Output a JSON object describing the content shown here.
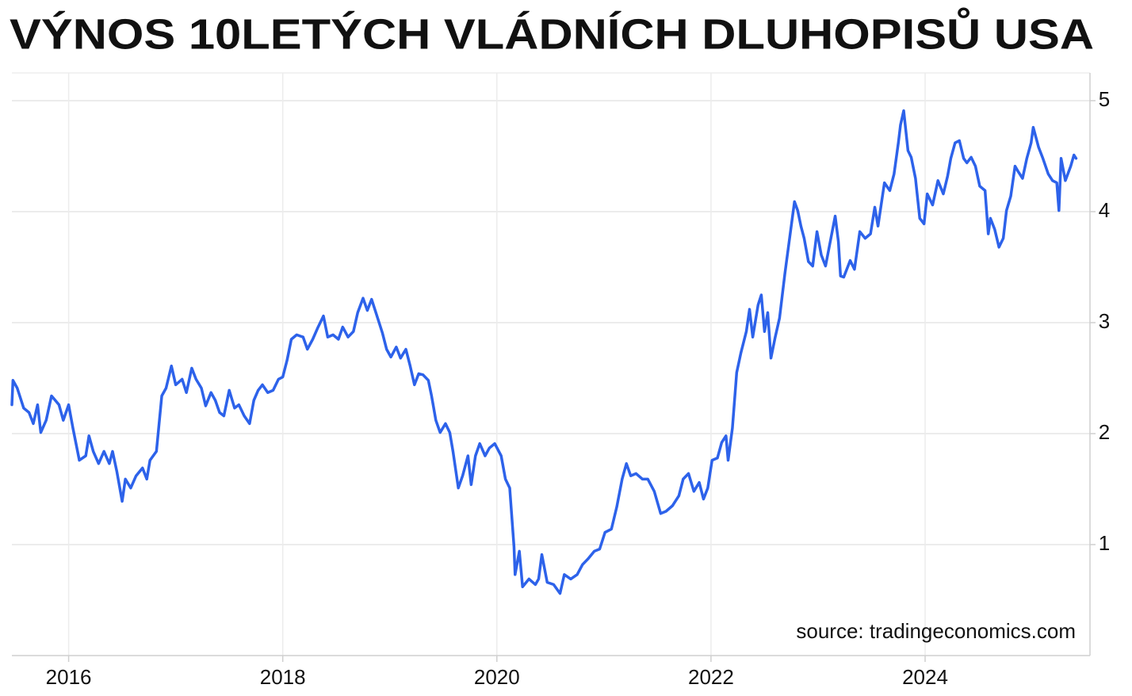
{
  "chart_data": {
    "type": "line",
    "title": "VÝNOS 10LETÝCH VLÁDNÍCH DLUHOPISŮ USA",
    "annotation": "source: tradingeconomics.com",
    "color": "#2d62ea",
    "grid": true,
    "xlim": [
      2015.47,
      2025.54
    ],
    "xticks": [
      2016,
      2018,
      2020,
      2022,
      2024
    ],
    "ylim": [
      0,
      5.25
    ],
    "yticks": [
      1,
      2,
      3,
      4,
      5
    ],
    "x": [
      2015.47,
      2015.48,
      2015.52,
      2015.58,
      2015.63,
      2015.67,
      2015.71,
      2015.74,
      2015.79,
      2015.84,
      2015.91,
      2015.95,
      2016.0,
      2016.04,
      2016.1,
      2016.16,
      2016.19,
      2016.23,
      2016.28,
      2016.33,
      2016.38,
      2016.41,
      2016.45,
      2016.5,
      2016.53,
      2016.58,
      2016.63,
      2016.69,
      2016.73,
      2016.76,
      2016.82,
      2016.87,
      2016.91,
      2016.96,
      2017.0,
      2017.06,
      2017.1,
      2017.15,
      2017.19,
      2017.24,
      2017.28,
      2017.33,
      2017.37,
      2017.41,
      2017.45,
      2017.5,
      2017.55,
      2017.59,
      2017.64,
      2017.69,
      2017.73,
      2017.77,
      2017.81,
      2017.86,
      2017.91,
      2017.96,
      2018.0,
      2018.04,
      2018.08,
      2018.13,
      2018.19,
      2018.23,
      2018.28,
      2018.33,
      2018.38,
      2018.42,
      2018.47,
      2018.52,
      2018.56,
      2018.61,
      2018.66,
      2018.7,
      2018.75,
      2018.79,
      2018.83,
      2018.87,
      2018.93,
      2018.97,
      2019.01,
      2019.06,
      2019.1,
      2019.15,
      2019.19,
      2019.23,
      2019.27,
      2019.31,
      2019.36,
      2019.39,
      2019.43,
      2019.47,
      2019.52,
      2019.56,
      2019.59,
      2019.64,
      2019.68,
      2019.73,
      2019.76,
      2019.8,
      2019.84,
      2019.89,
      2019.93,
      2019.98,
      2020.04,
      2020.08,
      2020.12,
      2020.16,
      2020.17,
      2020.21,
      2020.24,
      2020.3,
      2020.36,
      2020.39,
      2020.42,
      2020.47,
      2020.53,
      2020.59,
      2020.63,
      2020.69,
      2020.75,
      2020.8,
      2020.85,
      2020.91,
      2020.96,
      2021.01,
      2021.07,
      2021.12,
      2021.17,
      2021.21,
      2021.25,
      2021.3,
      2021.36,
      2021.41,
      2021.47,
      2021.53,
      2021.58,
      2021.64,
      2021.7,
      2021.74,
      2021.79,
      2021.84,
      2021.89,
      2021.93,
      2021.97,
      2022.01,
      2022.06,
      2022.1,
      2022.14,
      2022.16,
      2022.2,
      2022.24,
      2022.28,
      2022.33,
      2022.36,
      2022.39,
      2022.44,
      2022.47,
      2022.5,
      2022.53,
      2022.56,
      2022.6,
      2022.64,
      2022.69,
      2022.73,
      2022.78,
      2022.81,
      2022.84,
      2022.87,
      2022.91,
      2022.95,
      2022.99,
      2023.03,
      2023.07,
      2023.12,
      2023.16,
      2023.19,
      2023.21,
      2023.24,
      2023.3,
      2023.34,
      2023.39,
      2023.44,
      2023.49,
      2023.53,
      2023.56,
      2023.62,
      2023.67,
      2023.71,
      2023.75,
      2023.77,
      2023.8,
      2023.84,
      2023.87,
      2023.91,
      2023.95,
      2023.99,
      2024.02,
      2024.07,
      2024.12,
      2024.17,
      2024.21,
      2024.24,
      2024.28,
      2024.32,
      2024.36,
      2024.39,
      2024.43,
      2024.47,
      2024.51,
      2024.56,
      2024.59,
      2024.61,
      2024.65,
      2024.69,
      2024.73,
      2024.76,
      2024.8,
      2024.84,
      2024.87,
      2024.91,
      2024.95,
      2024.99,
      2025.01,
      2025.06,
      2025.1,
      2025.15,
      2025.19,
      2025.23,
      2025.25,
      2025.27,
      2025.31,
      2025.36,
      2025.39,
      2025.41
    ],
    "values": [
      2.26,
      2.48,
      2.41,
      2.23,
      2.19,
      2.09,
      2.26,
      2.01,
      2.12,
      2.34,
      2.26,
      2.12,
      2.26,
      2.05,
      1.76,
      1.8,
      1.98,
      1.84,
      1.73,
      1.84,
      1.73,
      1.84,
      1.66,
      1.39,
      1.59,
      1.51,
      1.62,
      1.69,
      1.59,
      1.76,
      1.84,
      2.34,
      2.41,
      2.61,
      2.44,
      2.49,
      2.37,
      2.59,
      2.49,
      2.41,
      2.25,
      2.37,
      2.3,
      2.19,
      2.16,
      2.39,
      2.23,
      2.26,
      2.16,
      2.09,
      2.3,
      2.39,
      2.44,
      2.37,
      2.39,
      2.49,
      2.51,
      2.66,
      2.85,
      2.89,
      2.87,
      2.76,
      2.85,
      2.96,
      3.06,
      2.87,
      2.89,
      2.85,
      2.96,
      2.87,
      2.92,
      3.09,
      3.22,
      3.11,
      3.21,
      3.09,
      2.91,
      2.76,
      2.69,
      2.78,
      2.68,
      2.76,
      2.61,
      2.44,
      2.54,
      2.53,
      2.48,
      2.34,
      2.12,
      2.01,
      2.09,
      2.01,
      1.84,
      1.51,
      1.62,
      1.8,
      1.54,
      1.8,
      1.91,
      1.8,
      1.87,
      1.91,
      1.8,
      1.59,
      1.51,
      0.98,
      0.73,
      0.94,
      0.62,
      0.69,
      0.64,
      0.69,
      0.91,
      0.66,
      0.64,
      0.56,
      0.73,
      0.69,
      0.73,
      0.82,
      0.87,
      0.94,
      0.96,
      1.11,
      1.14,
      1.34,
      1.59,
      1.73,
      1.62,
      1.64,
      1.59,
      1.59,
      1.48,
      1.28,
      1.3,
      1.35,
      1.44,
      1.59,
      1.64,
      1.48,
      1.56,
      1.41,
      1.51,
      1.76,
      1.78,
      1.92,
      1.98,
      1.76,
      2.05,
      2.55,
      2.73,
      2.92,
      3.12,
      2.87,
      3.16,
      3.25,
      2.92,
      3.09,
      2.68,
      2.87,
      3.04,
      3.44,
      3.73,
      4.09,
      4.01,
      3.87,
      3.76,
      3.55,
      3.51,
      3.82,
      3.61,
      3.51,
      3.76,
      3.96,
      3.73,
      3.42,
      3.41,
      3.56,
      3.48,
      3.82,
      3.76,
      3.8,
      4.04,
      3.87,
      4.26,
      4.19,
      4.34,
      4.62,
      4.78,
      4.91,
      4.55,
      4.49,
      4.3,
      3.94,
      3.89,
      4.16,
      4.06,
      4.28,
      4.16,
      4.32,
      4.48,
      4.62,
      4.64,
      4.48,
      4.44,
      4.49,
      4.41,
      4.23,
      4.19,
      3.8,
      3.94,
      3.84,
      3.68,
      3.76,
      4.01,
      4.14,
      4.41,
      4.36,
      4.3,
      4.48,
      4.62,
      4.76,
      4.58,
      4.48,
      4.34,
      4.28,
      4.26,
      4.01,
      4.48,
      4.28,
      4.41,
      4.51,
      4.48
    ]
  }
}
